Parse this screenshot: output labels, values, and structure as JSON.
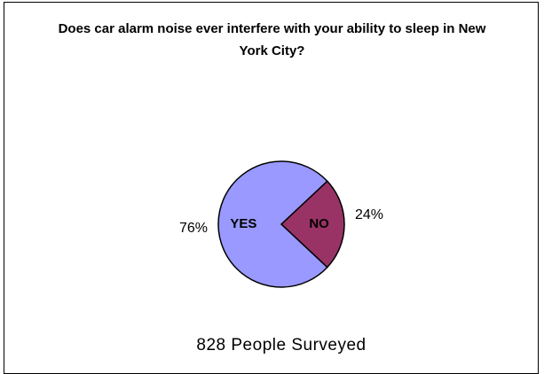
{
  "chart_data": {
    "type": "pie",
    "title": "Does car alarm noise ever interfere with your ability to sleep in New York City?",
    "categories": [
      "YES",
      "NO"
    ],
    "values": [
      76,
      24
    ],
    "value_labels": [
      "76%",
      "24%"
    ],
    "colors": [
      "#9999ff",
      "#993366"
    ],
    "annotation": "828 People Surveyed"
  }
}
